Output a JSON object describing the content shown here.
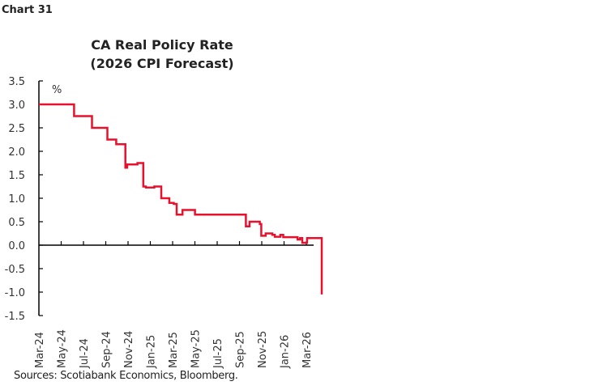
{
  "chart_label": "Chart 31",
  "chart_data": {
    "type": "line",
    "title": "CA Real Policy Rate",
    "subtitle": "(2026 CPI Forecast)",
    "ylabel": "%",
    "ylim": [
      -1.5,
      3.5
    ],
    "yticks": [
      "3.5",
      "3.0",
      "2.5",
      "2.0",
      "1.5",
      "1.0",
      "0.5",
      "0.0",
      "-0.5",
      "-1.0",
      "-1.5"
    ],
    "xlim": [
      "2024-03-01",
      "2026-04-15"
    ],
    "xticks": [
      "Mar-24",
      "May-24",
      "Jul-24",
      "Sep-24",
      "Nov-24",
      "Jan-25",
      "Mar-25",
      "May-25",
      "Jul-25",
      "Sep-25",
      "Nov-25",
      "Jan-26",
      "Mar-26"
    ],
    "grid": false,
    "step": true,
    "color": "#e8112d",
    "points": [
      [
        "2024-03-01",
        3.0
      ],
      [
        "2024-06-05",
        2.75
      ],
      [
        "2024-07-24",
        2.5
      ],
      [
        "2024-09-04",
        2.25
      ],
      [
        "2024-09-28",
        2.15
      ],
      [
        "2024-10-23",
        1.65
      ],
      [
        "2024-10-28",
        1.72
      ],
      [
        "2024-11-25",
        1.75
      ],
      [
        "2024-12-11",
        1.25
      ],
      [
        "2024-12-18",
        1.23
      ],
      [
        "2025-01-10",
        1.25
      ],
      [
        "2025-01-29",
        1.0
      ],
      [
        "2025-02-20",
        0.9
      ],
      [
        "2025-03-04",
        0.88
      ],
      [
        "2025-03-12",
        0.65
      ],
      [
        "2025-03-28",
        0.75
      ],
      [
        "2025-05-01",
        0.65
      ],
      [
        "2025-09-17",
        0.4
      ],
      [
        "2025-09-27",
        0.5
      ],
      [
        "2025-10-25",
        0.45
      ],
      [
        "2025-10-29",
        0.2
      ],
      [
        "2025-11-10",
        0.25
      ],
      [
        "2025-11-28",
        0.22
      ],
      [
        "2025-12-05",
        0.18
      ],
      [
        "2025-12-20",
        0.22
      ],
      [
        "2025-12-28",
        0.17
      ],
      [
        "2026-02-05",
        0.12
      ],
      [
        "2026-02-12",
        0.15
      ],
      [
        "2026-02-18",
        0.05
      ],
      [
        "2026-03-03",
        0.15
      ],
      [
        "2026-04-12",
        -1.05
      ]
    ]
  },
  "source": "Sources: Scotiabank Economics, Bloomberg."
}
